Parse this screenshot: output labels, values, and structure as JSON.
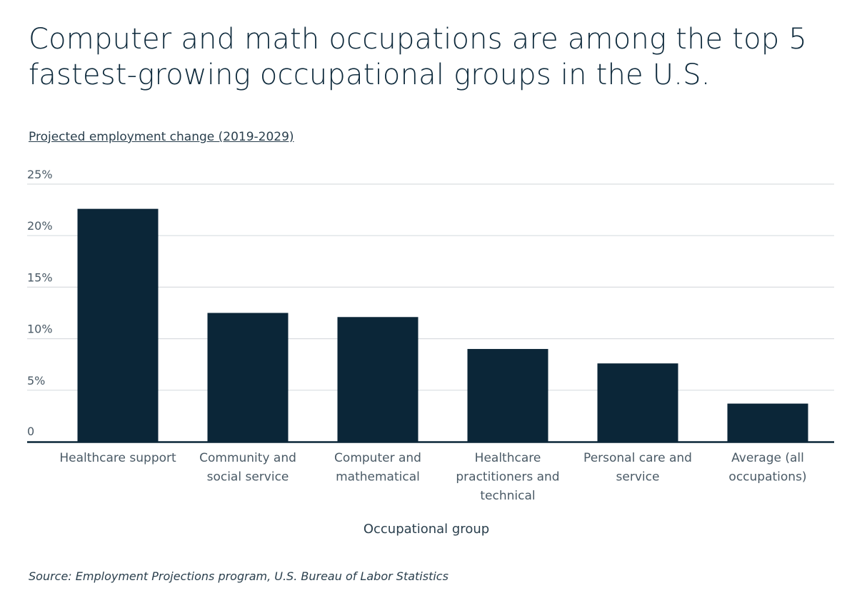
{
  "chart_data": {
    "type": "bar",
    "title": "Computer and math occupations are among the top 5 fastest-growing occupational groups in the U.S.",
    "subtitle": "Projected employment change (2019-2029)",
    "xlabel": "Occupational group",
    "ylabel": "",
    "source": "Source: Employment Projections program, U.S. Bureau of Labor Statistics",
    "categories": [
      [
        "Healthcare support"
      ],
      [
        "Community and",
        "social service"
      ],
      [
        "Computer and",
        "mathematical"
      ],
      [
        "Healthcare",
        "practitioners and",
        "technical"
      ],
      [
        "Personal care and",
        "service"
      ],
      [
        "Average (all",
        "occupations)"
      ]
    ],
    "values": [
      22.6,
      12.5,
      12.1,
      9.0,
      7.6,
      3.7
    ],
    "ylim": [
      0,
      25
    ],
    "yticks": [
      0,
      5,
      10,
      15,
      20,
      25
    ],
    "ytick_labels": [
      "0",
      "5%",
      "10%",
      "15%",
      "20%",
      "25%"
    ],
    "grid": true,
    "bar_color": "#0b2638",
    "grid_color": "#d9dde0"
  }
}
